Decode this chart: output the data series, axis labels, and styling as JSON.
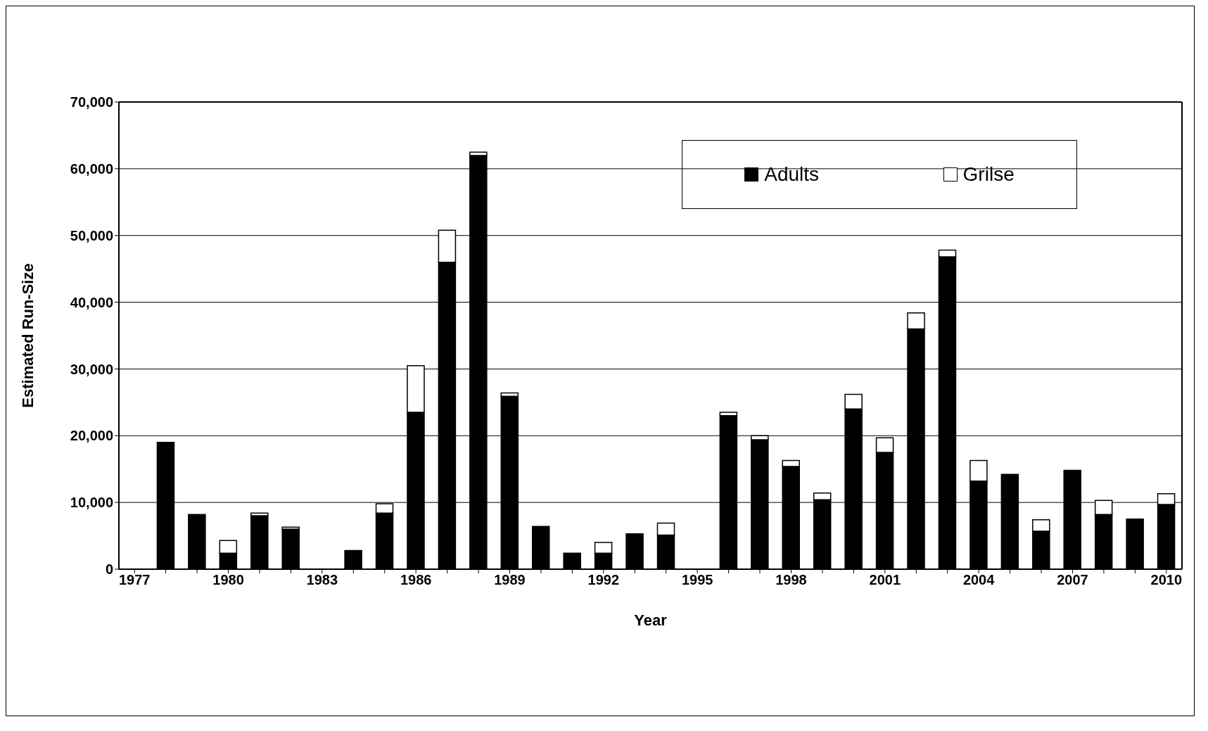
{
  "chart_data": {
    "type": "bar",
    "stacked": true,
    "xlabel": "Year",
    "ylabel": "Estimated Run-Size",
    "categories": [
      "1977",
      null,
      null,
      "1980",
      null,
      null,
      "1983",
      null,
      null,
      "1986",
      null,
      null,
      "1989",
      null,
      null,
      "1992",
      null,
      null,
      "1995",
      null,
      null,
      "1998",
      null,
      null,
      "2001",
      null,
      null,
      "2004",
      null,
      null,
      "2007",
      null,
      null,
      "2010"
    ],
    "series": [
      {
        "name": "Adults",
        "color": "#000000",
        "values": [
          null,
          19000,
          8200,
          2400,
          8000,
          6000,
          null,
          2800,
          8400,
          23500,
          46000,
          62000,
          25900,
          6400,
          2400,
          2400,
          5300,
          5100,
          null,
          23000,
          19400,
          15400,
          10400,
          24000,
          17500,
          36000,
          46800,
          13200,
          14200,
          5700,
          14800,
          8200,
          7500,
          9700
        ]
      },
      {
        "name": "Grilse",
        "color": "#ffffff",
        "values": [
          null,
          null,
          null,
          1900,
          400,
          300,
          null,
          null,
          1400,
          7000,
          4800,
          500,
          500,
          null,
          null,
          1600,
          null,
          1800,
          null,
          500,
          600,
          900,
          1000,
          2200,
          2200,
          2400,
          1000,
          3100,
          null,
          1700,
          null,
          2100,
          null,
          1600
        ]
      }
    ],
    "ylim": [
      0,
      70000
    ],
    "yticks": [
      0,
      {
        "value": 10000,
        "label": "10,000"
      },
      {
        "value": 20000,
        "label": "20,000"
      },
      {
        "value": 30000,
        "label": "30,000"
      },
      {
        "value": 40000,
        "label": "40,000"
      },
      {
        "value": 50000,
        "label": "50,000"
      },
      {
        "value": 60000,
        "label": "60,000"
      },
      {
        "value": 70000,
        "label": "70,000"
      }
    ],
    "grid": "y",
    "legend": "top right"
  }
}
